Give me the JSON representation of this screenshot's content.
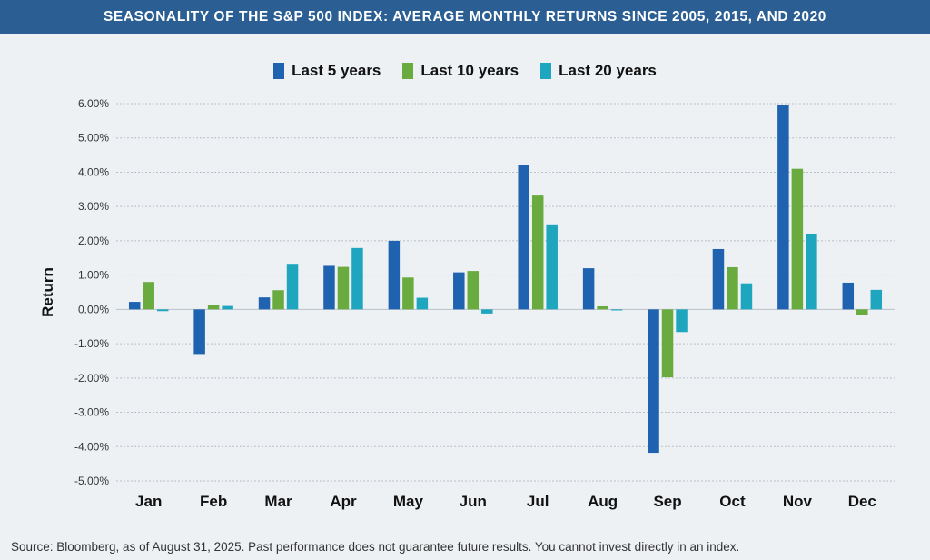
{
  "chart_data": {
    "type": "bar",
    "title": "SEASONALITY OF THE S&P 500 INDEX: AVERAGE MONTHLY RETURNS SINCE 2005, 2015, AND 2020",
    "xlabel": "",
    "ylabel": "Return",
    "ylim": [
      -5,
      6
    ],
    "y_ticks": [
      "6.00%",
      "5.00%",
      "4.00%",
      "3.00%",
      "2.00%",
      "1.00%",
      "0.00%",
      "-1.00%",
      "-2.00%",
      "-3.00%",
      "-4.00%",
      "-5.00%"
    ],
    "y_tick_values": [
      6,
      5,
      4,
      3,
      2,
      1,
      0,
      -1,
      -2,
      -3,
      -4,
      -5
    ],
    "grid": true,
    "legend_position": "top-center",
    "categories": [
      "Jan",
      "Feb",
      "Mar",
      "Apr",
      "May",
      "Jun",
      "Jul",
      "Aug",
      "Sep",
      "Oct",
      "Nov",
      "Dec"
    ],
    "series": [
      {
        "name": "Last 5 years",
        "color": "#1f63b0",
        "values": [
          0.22,
          -1.3,
          0.35,
          1.27,
          2.0,
          1.08,
          4.2,
          1.2,
          -4.18,
          1.76,
          5.95,
          0.78
        ]
      },
      {
        "name": "Last 10 years",
        "color": "#6aab3f",
        "values": [
          0.8,
          0.12,
          0.56,
          1.24,
          0.93,
          1.12,
          3.32,
          0.09,
          -1.98,
          1.23,
          4.1,
          -0.15
        ]
      },
      {
        "name": "Last 20 years",
        "color": "#1fa6bf",
        "values": [
          -0.05,
          0.1,
          1.33,
          1.79,
          0.34,
          -0.12,
          2.48,
          -0.03,
          -0.66,
          0.76,
          2.21,
          0.57
        ]
      }
    ]
  },
  "footer": {
    "source": "Source: Bloomberg, as of August 31, 2025. Past performance does not guarantee future results. You cannot invest directly in an index."
  }
}
